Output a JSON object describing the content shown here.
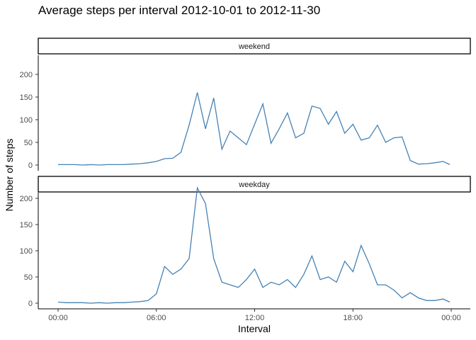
{
  "chart_data": {
    "type": "line",
    "title": "Average steps per interval 2012-10-01 to 2012-11-30",
    "xlabel": "Interval",
    "ylabel": "Number of steps",
    "x_ticks": [
      "00:00",
      "06:00",
      "12:00",
      "18:00",
      "00:00"
    ],
    "x_tick_hours": [
      0,
      6,
      12,
      18,
      24
    ],
    "y_ticks": [
      0,
      50,
      100,
      150,
      200
    ],
    "ylim": [
      0,
      240
    ],
    "grid": false,
    "line_color": "#4682b4",
    "x_step_minutes": 30,
    "series": [
      {
        "name": "weekend",
        "x_hours": [
          0,
          0.5,
          1,
          1.5,
          2,
          2.5,
          3,
          3.5,
          4,
          4.5,
          5,
          5.5,
          6,
          6.5,
          7,
          7.5,
          8,
          8.5,
          9,
          9.5,
          10,
          10.5,
          11,
          11.5,
          12,
          12.5,
          13,
          13.5,
          14,
          14.5,
          15,
          15.5,
          16,
          16.5,
          17,
          17.5,
          18,
          18.5,
          19,
          19.5,
          20,
          20.5,
          21,
          21.5,
          22,
          22.5,
          23,
          23.5,
          23.92
        ],
        "values": [
          1,
          1,
          1,
          0,
          1,
          0,
          1,
          1,
          1,
          2,
          3,
          5,
          8,
          14,
          15,
          28,
          88,
          160,
          80,
          148,
          35,
          75,
          60,
          45,
          90,
          135,
          48,
          80,
          115,
          60,
          70,
          130,
          125,
          90,
          118,
          70,
          90,
          55,
          60,
          88,
          50,
          60,
          62,
          10,
          2,
          3,
          5,
          8,
          1
        ]
      },
      {
        "name": "weekday",
        "x_hours": [
          0,
          0.5,
          1,
          1.5,
          2,
          2.5,
          3,
          3.5,
          4,
          4.5,
          5,
          5.5,
          6,
          6.5,
          7,
          7.5,
          8,
          8.5,
          9,
          9.5,
          10,
          10.5,
          11,
          11.5,
          12,
          12.5,
          13,
          13.5,
          14,
          14.5,
          15,
          15.5,
          16,
          16.5,
          17,
          17.5,
          18,
          18.5,
          19,
          19.5,
          20,
          20.5,
          21,
          21.5,
          22,
          22.5,
          23,
          23.5,
          23.92
        ],
        "values": [
          2,
          1,
          1,
          1,
          0,
          1,
          0,
          1,
          1,
          2,
          3,
          5,
          18,
          70,
          55,
          65,
          85,
          220,
          190,
          85,
          40,
          35,
          30,
          45,
          65,
          30,
          40,
          35,
          45,
          30,
          55,
          90,
          45,
          50,
          40,
          80,
          60,
          110,
          75,
          35,
          35,
          25,
          10,
          20,
          10,
          5,
          5,
          8,
          2
        ]
      }
    ]
  }
}
